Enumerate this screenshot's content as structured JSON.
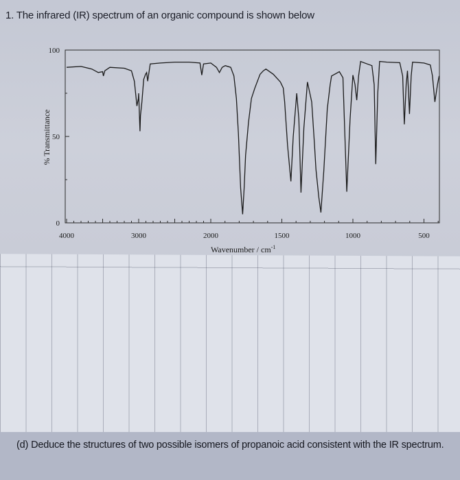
{
  "question": {
    "number": "1.",
    "intro": "The infrared (IR) spectrum of an organic compound is shown below",
    "part_label": "(d)",
    "part_text": "Deduce the structures of two possible isomers of propanoic acid consistent with the IR spectrum."
  },
  "chart_data": {
    "type": "line",
    "title": "",
    "xlabel": "Wavenumber / cm",
    "xlabel_superscript": "-1",
    "ylabel": "% Transmittance",
    "xlim": [
      4000,
      400
    ],
    "ylim": [
      0,
      100
    ],
    "x_scale_note": "axis scale changes at 2000 (expanded below 2000)",
    "x_ticks": [
      "4000",
      "3000",
      "2000",
      "1500",
      "1000",
      "500"
    ],
    "y_ticks": [
      "0",
      "50",
      "100"
    ],
    "grid": false,
    "line_color": "#1a1a1a",
    "series": [
      {
        "x": [
          4000,
          3800,
          3650,
          3560,
          3500,
          3490,
          3470,
          3400,
          3200,
          3100,
          3060,
          3035,
          3025,
          3005,
          3000,
          2990,
          2982,
          2975,
          2955,
          2930,
          2905,
          2890,
          2875,
          2840,
          2700,
          2500,
          2300,
          2150,
          2125,
          2100,
          2000,
          1960,
          1939,
          1920,
          1898,
          1860,
          1837,
          1820,
          1806,
          1790,
          1776,
          1765,
          1755,
          1735,
          1714,
          1690,
          1653,
          1630,
          1612,
          1560,
          1510,
          1490,
          1480,
          1460,
          1436,
          1420,
          1395,
          1380,
          1365,
          1345,
          1320,
          1290,
          1270,
          1260,
          1240,
          1225,
          1205,
          1180,
          1160,
          1150,
          1095,
          1070,
          1043,
          1020,
          1000,
          985,
          973,
          960,
          946,
          900,
          866,
          850,
          839,
          825,
          812,
          760,
          670,
          650,
          638,
          625,
          616,
          608,
          602,
          590,
          580,
          500,
          455,
          440,
          423,
          405,
          393
        ],
        "y": [
          90,
          90.5,
          89,
          87,
          87.5,
          85,
          88,
          90,
          89.5,
          88,
          82,
          72,
          67.6,
          72,
          75,
          62,
          53,
          62,
          70,
          83,
          86,
          87,
          82,
          92,
          92.5,
          93,
          93,
          92.5,
          85.5,
          92,
          92.5,
          90,
          87,
          90,
          91,
          90,
          85,
          72,
          52,
          20,
          5,
          20,
          39,
          58,
          72,
          78,
          86,
          88,
          89,
          86,
          81.5,
          78,
          70,
          45,
          24,
          50,
          75,
          60,
          17.5,
          55,
          81.5,
          70,
          45,
          31,
          15,
          6,
          30,
          66,
          80,
          85,
          87.5,
          84,
          18,
          60,
          85.5,
          80,
          71,
          85,
          93.4,
          92,
          91,
          80,
          34,
          75,
          93.4,
          93,
          92.7,
          85,
          57,
          80,
          88,
          75,
          63,
          85,
          93,
          92.5,
          91.4,
          85,
          70,
          80,
          85
        ]
      }
    ]
  }
}
